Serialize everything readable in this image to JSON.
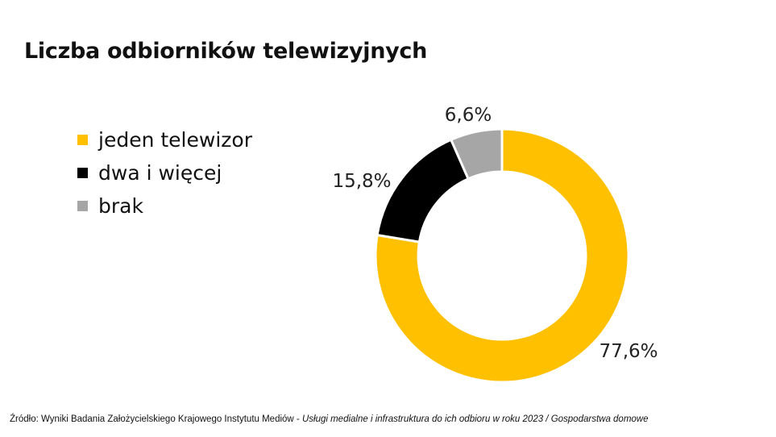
{
  "chart_data": {
    "type": "pie",
    "title": "Liczba odbiorników telewizyjnych",
    "categories": [
      "jeden telewizor",
      "dwa i więcej",
      "brak"
    ],
    "values": [
      77.6,
      15.8,
      6.6
    ],
    "value_labels": [
      "77,6%",
      "15,8%",
      "6,6%"
    ],
    "colors": [
      "#FFC000",
      "#000000",
      "#A6A6A6"
    ],
    "legend_position": "left",
    "donut": true,
    "start": "top",
    "direction": "clockwise"
  },
  "source": {
    "prefix": "Źródło: Wyniki Badania Założycielskiego Krajowego Instytutu Mediów - ",
    "italic": "Usługi medialne i infrastruktura do ich odbioru w roku 2023 / Gospodarstwa domowe"
  }
}
